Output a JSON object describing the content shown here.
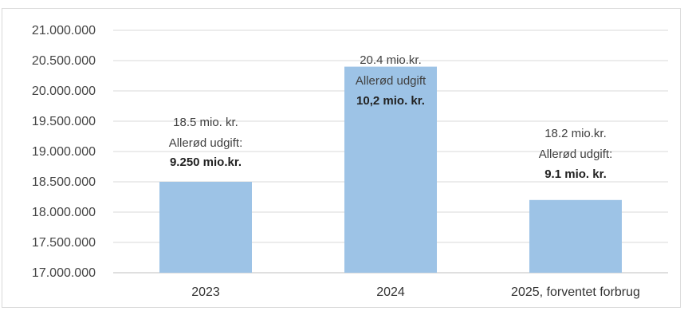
{
  "chart_data": {
    "type": "bar",
    "categories": [
      "2023",
      "2024",
      "2025, forventet forbrug"
    ],
    "values": [
      18500000,
      20400000,
      18200000
    ],
    "ylim": [
      17000000,
      21000000
    ],
    "yticks": [
      "17.000.000",
      "17.500.000",
      "18.000.000",
      "18.500.000",
      "19.000.000",
      "19.500.000",
      "20.000.000",
      "20.500.000",
      "21.000.000"
    ],
    "grid": true,
    "color": "#9dc3e6",
    "annotations": [
      {
        "line1": "18.5 mio. kr.",
        "line2": "Allerød udgift:",
        "line3": "9.250 mio.kr."
      },
      {
        "line1": "20.4 mio.kr.",
        "line2": "Allerød udgift",
        "line3": "10,2 mio. kr."
      },
      {
        "line1": "18.2 mio.kr.",
        "line2": "Allerød udgift:",
        "line3": "9.1 mio. kr."
      }
    ]
  }
}
